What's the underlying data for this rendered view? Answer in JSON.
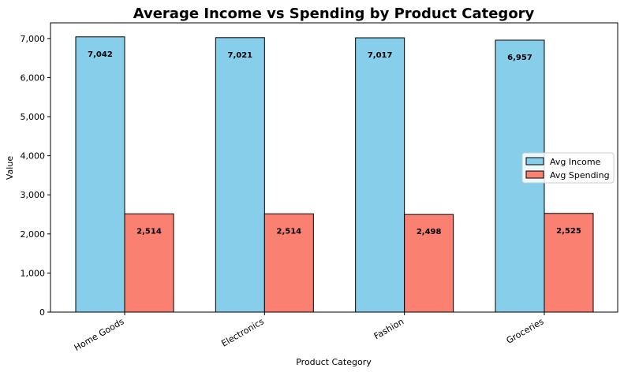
{
  "chart_data": {
    "type": "bar",
    "title": "Average Income vs Spending by Product Category",
    "xlabel": "Product Category",
    "ylabel": "Value",
    "categories": [
      "Home Goods",
      "Electronics",
      "Fashion",
      "Groceries"
    ],
    "series": [
      {
        "name": "Avg Income",
        "values": [
          7042,
          7021,
          7017,
          6957
        ],
        "labels": [
          "7,042",
          "7,021",
          "7,017",
          "6,957"
        ],
        "color": "#87CEEB"
      },
      {
        "name": "Avg Spending",
        "values": [
          2514,
          2514,
          2498,
          2525
        ],
        "labels": [
          "2,514",
          "2,514",
          "2,498",
          "2,525"
        ],
        "color": "#FA8072"
      }
    ],
    "ylim": [
      0,
      7400
    ],
    "yticks": [
      0,
      1000,
      2000,
      3000,
      4000,
      5000,
      6000,
      7000
    ],
    "ytick_labels": [
      "0",
      "1,000",
      "2,000",
      "3,000",
      "4,000",
      "5,000",
      "6,000",
      "7,000"
    ],
    "legend_position": "center-right",
    "grid": false,
    "bar_edge_color": "#000000"
  }
}
